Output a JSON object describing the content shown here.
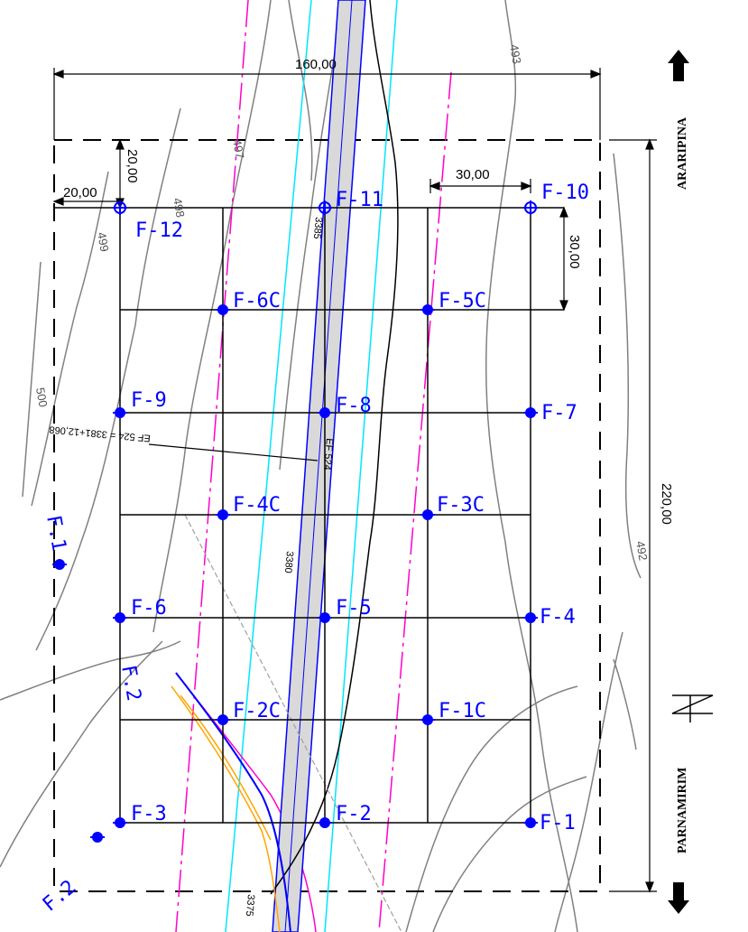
{
  "dimensions": {
    "width_total": "160,00",
    "height_total": "220,00",
    "spacing_x": "30,00",
    "spacing_y": "30,00",
    "offset_x": "20,00",
    "offset_y": "20,00"
  },
  "boreholes": [
    {
      "id": "f10",
      "label": "F-10"
    },
    {
      "id": "f11",
      "label": "F-11"
    },
    {
      "id": "f12",
      "label": "F-12"
    },
    {
      "id": "f5c",
      "label": "F-5C"
    },
    {
      "id": "f6c",
      "label": "F-6C"
    },
    {
      "id": "f7",
      "label": "F-7"
    },
    {
      "id": "f8",
      "label": "F-8"
    },
    {
      "id": "f9",
      "label": "F-9"
    },
    {
      "id": "f3c",
      "label": "F-3C"
    },
    {
      "id": "f4c",
      "label": "F-4C"
    },
    {
      "id": "f4",
      "label": "F-4"
    },
    {
      "id": "f5",
      "label": "F-5"
    },
    {
      "id": "f6",
      "label": "F-6"
    },
    {
      "id": "f1c",
      "label": "F-1C"
    },
    {
      "id": "f2c",
      "label": "F-2C"
    },
    {
      "id": "f1",
      "label": "F-1"
    },
    {
      "id": "f2",
      "label": "F-2"
    },
    {
      "id": "f3",
      "label": "F-3"
    }
  ],
  "extra_points": [
    {
      "id": "f1_ext",
      "label": "F.1"
    },
    {
      "id": "f2_ext",
      "label": "F.2"
    },
    {
      "id": "f2_ext_b",
      "label": "F.2"
    }
  ],
  "contours": {
    "c493": "493",
    "c492": "492",
    "c497": "497",
    "c498": "498",
    "c499": "499",
    "c500": "500"
  },
  "road": {
    "station_note": "EF 524 = 3381+12,068",
    "ef_label": "EF 524",
    "st_3385": "3385",
    "st_3380": "3380",
    "st_3375": "3375"
  },
  "directions": {
    "north": "ARARIPINA",
    "south": "PARNAMIRIM"
  },
  "colors": {
    "borehole": "#0000ff",
    "road_fill": "#d9d9d9",
    "magenta": "#ff00cc",
    "cyan": "#00e5ff",
    "red": "#ff0000",
    "orange": "#ffa500",
    "contour": "#808080"
  }
}
